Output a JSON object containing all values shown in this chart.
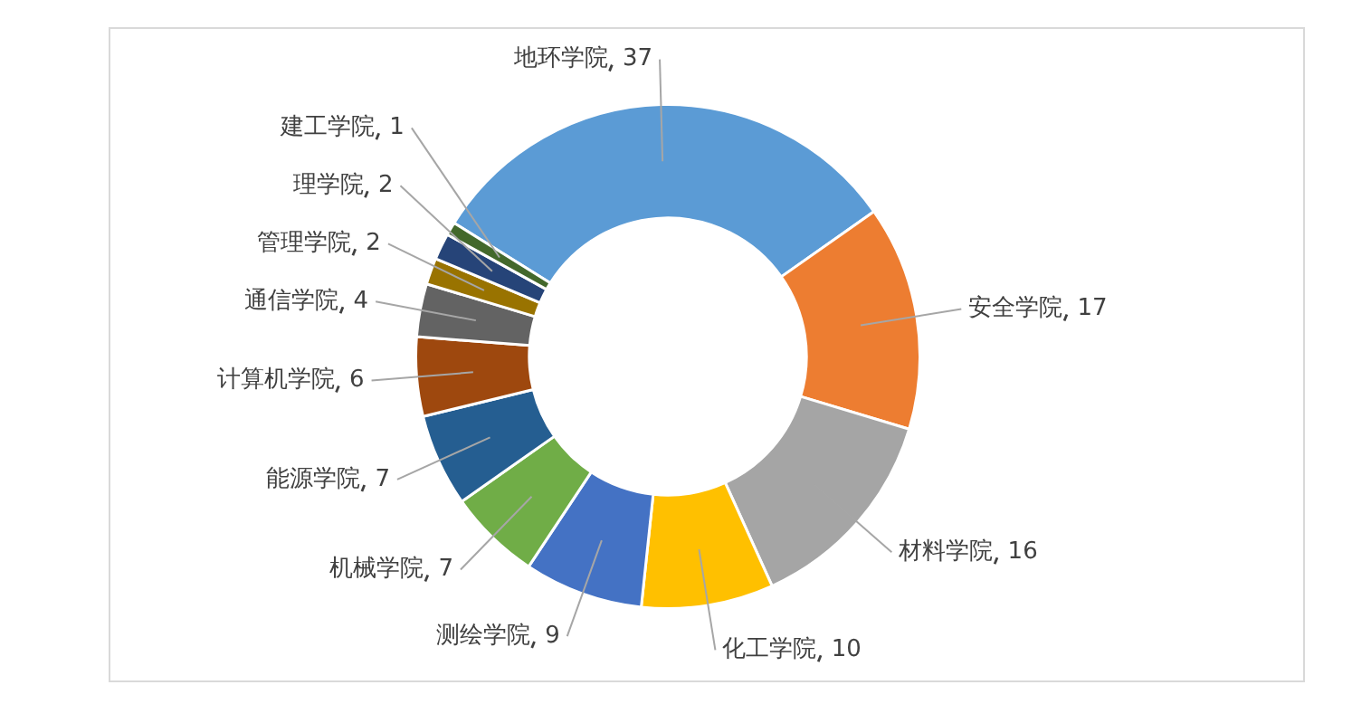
{
  "chart_data": {
    "type": "donut",
    "categories": [
      "地环学院",
      "安全学院",
      "材料学院",
      "化工学院",
      "测绘学院",
      "机械学院",
      "能源学院",
      "计算机学院",
      "通信学院",
      "管理学院",
      "理学院",
      "建工学院"
    ],
    "values": [
      37,
      17,
      16,
      10,
      9,
      7,
      7,
      6,
      4,
      2,
      2,
      1
    ],
    "colors": [
      "#5b9bd5",
      "#ed7d31",
      "#a5a5a5",
      "#ffc000",
      "#4472c4",
      "#70ad47",
      "#255e91",
      "#9e480e",
      "#636363",
      "#997300",
      "#264478",
      "#43682b"
    ],
    "data_labels": true,
    "legend": false
  }
}
